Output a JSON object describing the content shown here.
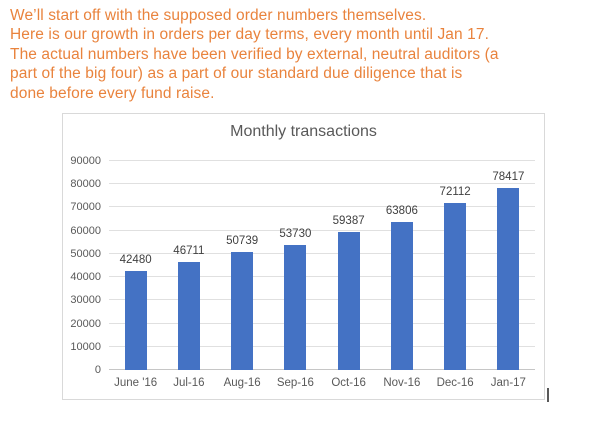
{
  "page": {
    "text_color": "#E9833D",
    "intro_lines": [
      "We’ll start off with the supposed order numbers themselves.",
      "Here is our growth in orders per day terms, every month until Jan 17.",
      "The actual numbers have been verified by external, neutral auditors (a",
      "part of the big four) as a part of our standard due diligence that is",
      "done before every fund raise."
    ]
  },
  "chart_data": {
    "type": "bar",
    "title": "Monthly transactions",
    "categories": [
      "June '16",
      "Jul-16",
      "Aug-16",
      "Sep-16",
      "Oct-16",
      "Nov-16",
      "Dec-16",
      "Jan-17"
    ],
    "values": [
      42480,
      46711,
      50739,
      53730,
      59387,
      63806,
      72112,
      78417
    ],
    "xlabel": "",
    "ylabel": "",
    "ylim": [
      0,
      90000
    ],
    "yticks": [
      0,
      10000,
      20000,
      30000,
      40000,
      50000,
      60000,
      70000,
      80000,
      90000
    ],
    "grid": true,
    "legend_position": "none",
    "data_labels": true,
    "bar_color": "#4472C4",
    "title_color": "#595959",
    "tick_color": "#595959",
    "data_label_color": "#404040"
  }
}
